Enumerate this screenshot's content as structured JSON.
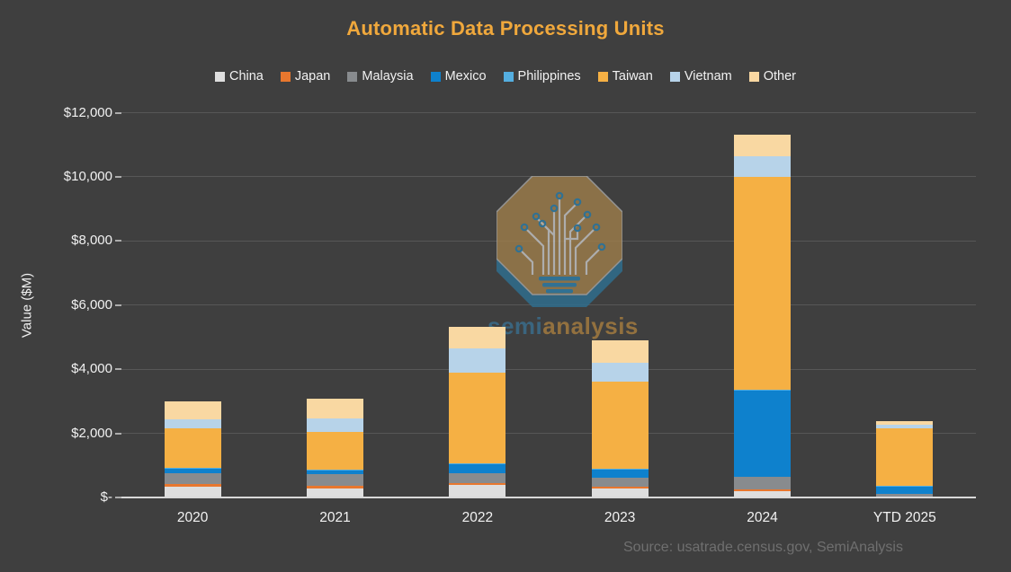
{
  "title": "Automatic Data Processing Units",
  "y_axis_title": "Value ($M)",
  "source_note": "Source: usatrade.census.gov, SemiAnalysis",
  "watermark": {
    "brand_semi": "semi",
    "brand_analysis": "analysis"
  },
  "colors": {
    "background": "#3F3F3F",
    "title": "#F0A83C",
    "text": "#F1F1F1",
    "gridline": "#575757",
    "axis_line": "#D9D9D9",
    "source_text": "#6F6F6F",
    "watermark_octagon": "#9C7C4A",
    "watermark_octagon_side": "#2E6F90",
    "watermark_circuit": "#C6C6C6",
    "watermark_dot": "#2E7DA6",
    "watermark_semi": "#3A6E8E",
    "watermark_analysis": "#A67D3F"
  },
  "chart_data": {
    "type": "bar",
    "stacked": true,
    "title": "Automatic Data Processing Units",
    "ylabel": "Value ($M)",
    "xlabel": "",
    "categories": [
      "2020",
      "2021",
      "2022",
      "2023",
      "2024",
      "YTD 2025"
    ],
    "series": [
      {
        "name": "China",
        "color": "#DEDEDE",
        "values": [
          340,
          290,
          390,
          270,
          200,
          15
        ]
      },
      {
        "name": "Japan",
        "color": "#E8772E",
        "values": [
          80,
          75,
          50,
          70,
          50,
          5
        ]
      },
      {
        "name": "Malaysia",
        "color": "#888B8E",
        "values": [
          330,
          355,
          325,
          280,
          400,
          100
        ]
      },
      {
        "name": "Mexico",
        "color": "#0E81CD",
        "values": [
          175,
          140,
          280,
          250,
          2700,
          240
        ]
      },
      {
        "name": "Philippines",
        "color": "#54AEE0",
        "values": [
          10,
          10,
          20,
          20,
          20,
          5
        ]
      },
      {
        "name": "Taiwan",
        "color": "#F5B044",
        "values": [
          1220,
          1165,
          2840,
          2710,
          6620,
          1780
        ]
      },
      {
        "name": "Vietnam",
        "color": "#B7D3E9",
        "values": [
          295,
          420,
          735,
          590,
          640,
          110
        ]
      },
      {
        "name": "Other",
        "color": "#F9D8A2",
        "values": [
          560,
          615,
          680,
          720,
          680,
          115
        ]
      }
    ],
    "totals": [
      3010,
      3070,
      5320,
      4910,
      11310,
      2370
    ],
    "ylim": [
      0,
      12000
    ],
    "y_tick_values": [
      0,
      2000,
      4000,
      6000,
      8000,
      10000,
      12000
    ],
    "y_tick_labels": [
      "$-",
      "$2,000",
      "$4,000",
      "$6,000",
      "$8,000",
      "$10,000",
      "$12,000"
    ],
    "grid": true,
    "legend_position": "top"
  }
}
